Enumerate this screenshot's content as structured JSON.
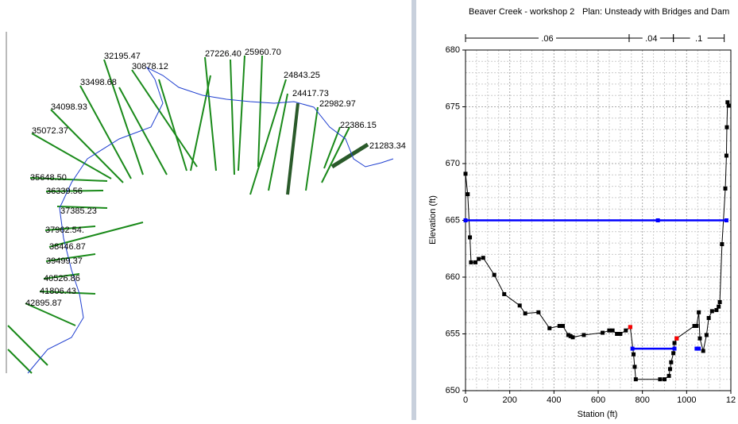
{
  "plan_view": {
    "labels": [
      "32195.47",
      "30878.12",
      "27226.40",
      "25960.70",
      "33498.68",
      "24843.25",
      "24417.73",
      "22982.97",
      "34098.93",
      "22386.15",
      "35072.37",
      "21283.34",
      "35648.50",
      "36339.56",
      "37385.23",
      "37962.54.",
      "38446.87",
      "39499.37",
      "40526.86",
      "41806.43",
      "42895.87"
    ]
  },
  "chart_data": {
    "type": "line",
    "title": "Beaver Creek - workshop 2",
    "subtitle": "Plan: Unsteady with Bridges and Dam",
    "x_label": "Station (ft)",
    "y_label": "Elevation (ft)",
    "xlim": [
      0,
      1200
    ],
    "xticks": [
      0,
      200,
      400,
      600,
      800,
      1000,
      {
        "value": 1200,
        "label": "12"
      }
    ],
    "ylim": [
      650,
      680
    ],
    "yticks": [
      650,
      655,
      660,
      665,
      670,
      675,
      680
    ],
    "grid": true,
    "n_values": [
      {
        "label": ".06",
        "start": 0,
        "end": 740
      },
      {
        "label": ".04",
        "start": 740,
        "end": 940
      },
      {
        "label": ".1",
        "start": 940,
        "end": 1170
      }
    ],
    "series": [
      {
        "color": "#000000",
        "x": [
          0,
          10,
          20,
          25,
          45,
          60,
          80,
          130,
          175,
          245,
          270,
          330,
          380,
          425,
          440,
          465,
          475,
          485,
          535,
          620,
          650,
          665,
          685,
          700,
          725,
          745,
          760,
          765,
          770,
          880,
          900,
          920,
          925,
          930,
          940,
          945,
          955,
          1035,
          1045,
          1055,
          1060,
          1075,
          1090,
          1100,
          1115,
          1135,
          1145,
          1150,
          1160,
          1175,
          1180,
          1182,
          1185,
          1190
        ],
        "values": [
          669.1,
          667.3,
          663.5,
          661.3,
          661.3,
          661.6,
          661.7,
          660.2,
          658.5,
          657.5,
          656.8,
          656.9,
          655.5,
          655.7,
          655.7,
          654.9,
          654.8,
          654.7,
          654.9,
          655.1,
          655.3,
          655.3,
          655.0,
          655.0,
          655.3,
          655.6,
          653.2,
          652.1,
          651.0,
          651.0,
          651.0,
          651.3,
          651.9,
          652.5,
          653.3,
          654.2,
          654.6,
          655.7,
          655.7,
          656.9,
          654.6,
          653.5,
          654.9,
          656.4,
          657.0,
          657.1,
          657.4,
          657.8,
          662.9,
          667.8,
          670.7,
          673.2,
          675.4,
          675.1
        ]
      },
      {
        "color": "#0000ff",
        "x": [
          0,
          870,
          1180
        ],
        "values": [
          665,
          665,
          665
        ]
      },
      {
        "color": "#0000ff",
        "x": [
          755,
          945
        ],
        "values": [
          653.7,
          653.7
        ]
      },
      {
        "color": "#0000ff",
        "x": [
          1045,
          1055
        ],
        "values": [
          653.7,
          653.7
        ]
      },
      {
        "color": "#ff0000",
        "x": [
          745,
          955
        ],
        "values": [
          655.6,
          654.6
        ]
      }
    ]
  }
}
